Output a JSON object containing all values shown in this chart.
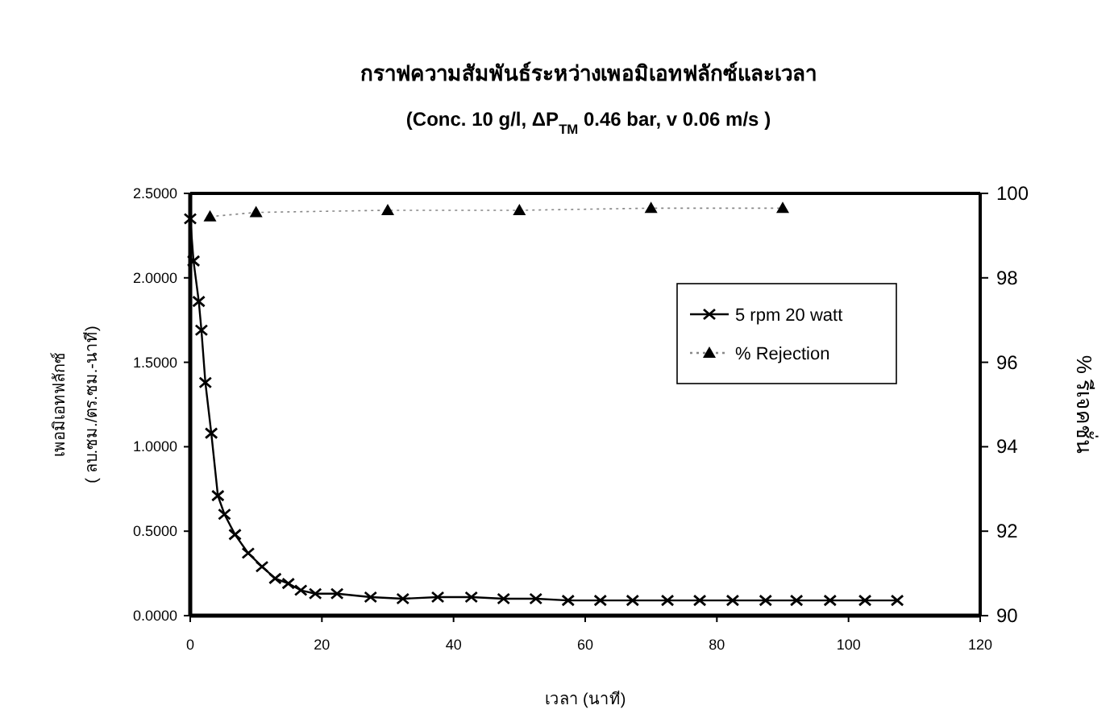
{
  "chart_data": {
    "type": "line",
    "title": "กราฟความสัมพันธ์ระหว่างเพอมิเอทฟลักซ์และเวลา",
    "subtitle": "(Conc. 10 g/l, ΔP$_{TM}$ 0.46 bar, v 0.06 m/s )",
    "xlabel": "เวลา (นาที)",
    "ylabel": "เพอมิเอทฟลักซ์\n( ลบ.ซม./ตร.ซม.-นาที)",
    "y2label": "% รีเจคชั่น",
    "xlim": [
      0,
      120
    ],
    "xticks": [
      0,
      20,
      40,
      60,
      80,
      100,
      120
    ],
    "ylim": [
      0,
      2.5
    ],
    "yticks": [
      {
        "value": 0,
        "label": "0.0000"
      },
      {
        "value": 0.5,
        "label": "0.5000"
      },
      {
        "value": 1,
        "label": "1.0000"
      },
      {
        "value": 1.5,
        "label": "1.5000"
      },
      {
        "value": 2,
        "label": "2.0000"
      },
      {
        "value": 2.5,
        "label": "2.5000"
      }
    ],
    "y2lim": [
      90,
      100
    ],
    "y2ticks": [
      90,
      92,
      94,
      96,
      98,
      100
    ],
    "legend": "right",
    "series": [
      {
        "name": "5 rpm 20 watt",
        "color": "#000000",
        "marker": "cross",
        "line_style": "solid",
        "x": [
          0,
          0.5,
          1.3,
          1.7,
          2.3,
          3.2,
          4.2,
          5.2,
          6.8,
          8.8,
          10.9,
          12.9,
          14.9,
          16.8,
          19,
          22.3,
          27.4,
          32.3,
          37.6,
          42.7,
          47.6,
          52.5,
          57.4,
          62.3,
          67.2,
          72.5,
          77.4,
          82.4,
          87.4,
          92.1,
          97.2,
          102.5,
          107.4
        ],
        "values": [
          2.35,
          2.1,
          1.86,
          1.69,
          1.38,
          1.08,
          0.71,
          0.6,
          0.48,
          0.37,
          0.29,
          0.22,
          0.19,
          0.15,
          0.13,
          0.13,
          0.11,
          0.1,
          0.11,
          0.11,
          0.1,
          0.1,
          0.09,
          0.09,
          0.09,
          0.09,
          0.09,
          0.09,
          0.09,
          0.09,
          0.09,
          0.09,
          0.09
        ]
      },
      {
        "name": "% Rejection",
        "color": "#000000",
        "marker": "triangle",
        "line_style": "dotted",
        "axis": "y2",
        "x": [
          3,
          10,
          30,
          50,
          70,
          90
        ],
        "values": [
          99.45,
          99.55,
          99.6,
          99.6,
          99.65,
          99.65
        ]
      }
    ]
  }
}
